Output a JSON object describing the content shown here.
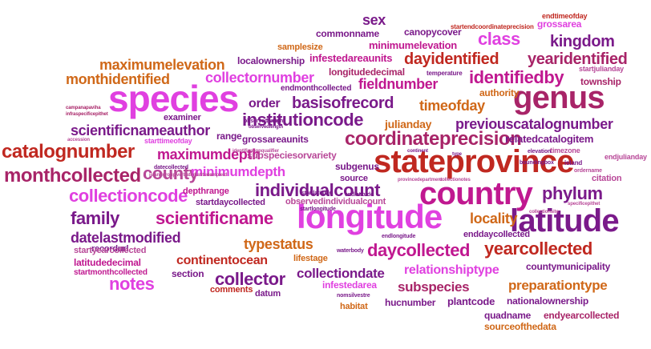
{
  "words": {
    "species": "species",
    "genus": "genus",
    "country": "country",
    "stateprovince": "stateprovince",
    "longitude": "longitude",
    "latitude": "latitude",
    "catalognumber": "catalognumber",
    "monthcollected": "monthcollected",
    "county": "county",
    "collectioncode": "collectioncode",
    "individualcount": "individualcount",
    "phylum": "phylum",
    "family": "family",
    "scientificname": "scientificname",
    "coordinateprecision": "coordinateprecision",
    "institutioncode": "institutioncode",
    "basisofrecord": "basisofrecord",
    "identifiedby": "identifiedby",
    "class": "class",
    "kingdom": "kingdom",
    "dayidentified": "dayidentified",
    "yearidentified": "yearidentified",
    "monthidentified": "monthidentified",
    "maximumelevation": "maximumelevation",
    "collectornumber": "collectornumber",
    "fieldnumber": "fieldnumber",
    "timeofday": "timeofday",
    "order": "order",
    "previouscatalognumber": "previouscatalognumber",
    "scientificnameauthor": "scientificnameauthor",
    "maximumdepth": "maximumdepth",
    "minimumdepth": "minimumdepth",
    "locality": "locality",
    "datelastmodified": "datelastmodified",
    "typestatus": "typestatus",
    "daycollected": "daycollected",
    "yearcollected": "yearcollected",
    "continentocean": "continentocean",
    "collector": "collector",
    "collectiondate": "collectiondate",
    "notes": "notes",
    "subspecies": "subspecies",
    "preparationtype": "preparationtype",
    "relationshiptype": "relationshiptype",
    "sex": "sex",
    "commonname": "commonname",
    "canopycover": "canopycover",
    "minimumelevation": "minimumelevation",
    "localownership": "localownership",
    "infestedareaunits": "infestedareaunits",
    "longitudedecimal": "longitudedecimal",
    "authority": "authority",
    "township": "township",
    "julianday": "julianday",
    "relatedcatalogitem": "relatedcatalogitem",
    "grossareaunits": "grossareaunits",
    "subspeciesorvariety": "subspeciesorvariety",
    "subgenus": "subgenus",
    "source": "source",
    "depthrange": "depthrange",
    "startdaycollected": "startdaycollected",
    "observedindividualcount": "observedindividualcount",
    "recordurl": "recordurl",
    "range": "range",
    "examiner": "examiner",
    "enddaycollected": "enddaycollected",
    "lifestage": "lifestage",
    "section": "section",
    "comments": "comments",
    "datum": "datum",
    "infestedarea": "infestedarea",
    "habitat": "habitat",
    "hucnumber": "hucnumber",
    "plantcode": "plantcode",
    "nationalownership": "nationalownership",
    "quadname": "quadname",
    "endyearcollected": "endyearcollected",
    "sourceofthedata": "sourceofthedata",
    "countymunicipality": "countymunicipality",
    "latitudedecimal": "latitudedecimal",
    "startyearcollected": "startyearcollected",
    "startmonthcollected": "startmonthcollected",
    "endtimeofday": "endtimeofday",
    "grossarea": "grossarea",
    "startendcoordinateprecision": "startendcoordinateprecision",
    "samplesize": "samplesize",
    "temperature": "temperature",
    "startjulianday": "startjulianday",
    "endmonthcollected": "endmonthcollected",
    "starttimeofday": "starttimeofday",
    "timezone": "timezone",
    "citation": "citation",
    "endjulianday": "endjulianday",
    "elevation": "elevation",
    "boundingbox": "boundingbox",
    "island": "island",
    "ordername": "ordername",
    "taxon": "taxon",
    "observedweight": "observedweight",
    "startlongitude": "startlongitude",
    "endlatitude": "endlatitude",
    "endlongitude": "endlongitude",
    "waterbody": "waterbody",
    "nomsilvestre": "nomsilvestre",
    "startlatitude": "startlatitude",
    "observedlength": "observedlength",
    "datecollected": "datecollected",
    "islandgroup": "islandgroup",
    "verbatimlatitude": "verbatimlatitude",
    "sampleid": "sampleid",
    "identificationqualifier": "identificationqualifier",
    "specificepithet": "specificepithet",
    "infraspecificepithet": "infraspecificepithet",
    "campanapaviha": "campanapaviha",
    "accession": "accession",
    "provincedepartment": "provincedepartment",
    "collectionotes": "collectionotes",
    "collectionsite": "collectionsite",
    "continent": "continent",
    "type": "type"
  }
}
